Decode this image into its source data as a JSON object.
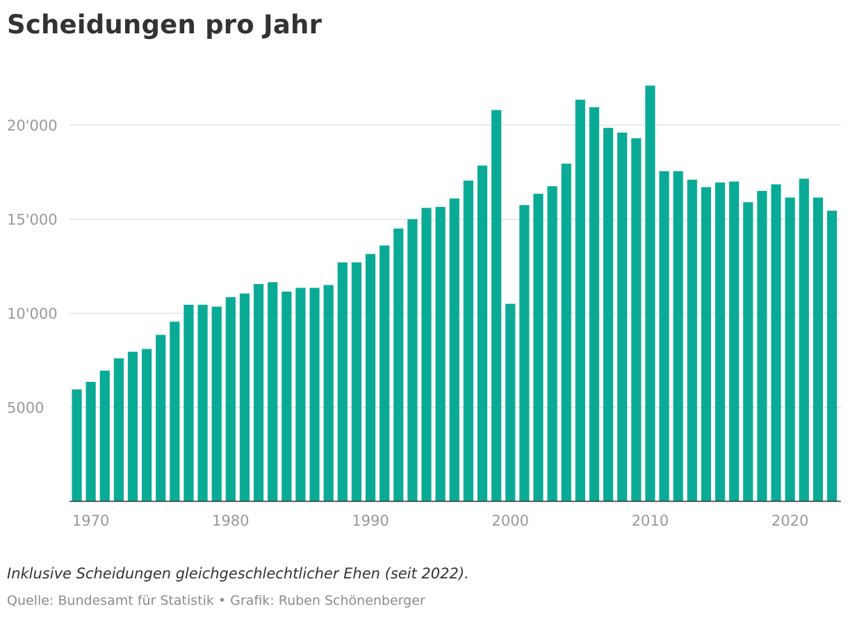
{
  "header": {
    "title": "Scheidungen pro Jahr"
  },
  "footer": {
    "note": "Inklusive Scheidungen gleichgeschlechtlicher Ehen (seit 2022).",
    "source": "Quelle: Bundesamt für Statistik • Grafik: Ruben Schönenberger"
  },
  "chart_data": {
    "type": "bar",
    "title": "Scheidungen pro Jahr",
    "xlabel": "",
    "ylabel": "",
    "bar_color": "#0aab96",
    "grid": true,
    "ylim": [
      0,
      22700
    ],
    "y_ticks": [
      {
        "value": 5000,
        "label": "5000"
      },
      {
        "value": 10000,
        "label": "10'000"
      },
      {
        "value": 15000,
        "label": "15'000"
      },
      {
        "value": 20000,
        "label": "20'000"
      }
    ],
    "x_ticks": [
      {
        "year": 1970,
        "label": "1970"
      },
      {
        "year": 1980,
        "label": "1980"
      },
      {
        "year": 1990,
        "label": "1990"
      },
      {
        "year": 2000,
        "label": "2000"
      },
      {
        "year": 2010,
        "label": "2010"
      },
      {
        "year": 2020,
        "label": "2020"
      }
    ],
    "categories": [
      1969,
      1970,
      1971,
      1972,
      1973,
      1974,
      1975,
      1976,
      1977,
      1978,
      1979,
      1980,
      1981,
      1982,
      1983,
      1984,
      1985,
      1986,
      1987,
      1988,
      1989,
      1990,
      1991,
      1992,
      1993,
      1994,
      1995,
      1996,
      1997,
      1998,
      1999,
      2000,
      2001,
      2002,
      2003,
      2004,
      2005,
      2006,
      2007,
      2008,
      2009,
      2010,
      2011,
      2012,
      2013,
      2014,
      2015,
      2016,
      2017,
      2018,
      2019,
      2020,
      2021,
      2022,
      2023
    ],
    "values": [
      5950,
      6350,
      6950,
      7600,
      7950,
      8100,
      8850,
      9550,
      10450,
      10450,
      10350,
      10850,
      11050,
      11550,
      11650,
      11150,
      11350,
      11350,
      11500,
      12700,
      12700,
      13150,
      13600,
      14500,
      15000,
      15600,
      15650,
      16100,
      17050,
      17850,
      20800,
      10500,
      15750,
      16350,
      16750,
      17950,
      21350,
      20950,
      19850,
      19600,
      19300,
      22100,
      17550,
      17550,
      17100,
      16700,
      16950,
      17000,
      15900,
      16500,
      16850,
      16150,
      17150,
      16150,
      15450
    ]
  }
}
